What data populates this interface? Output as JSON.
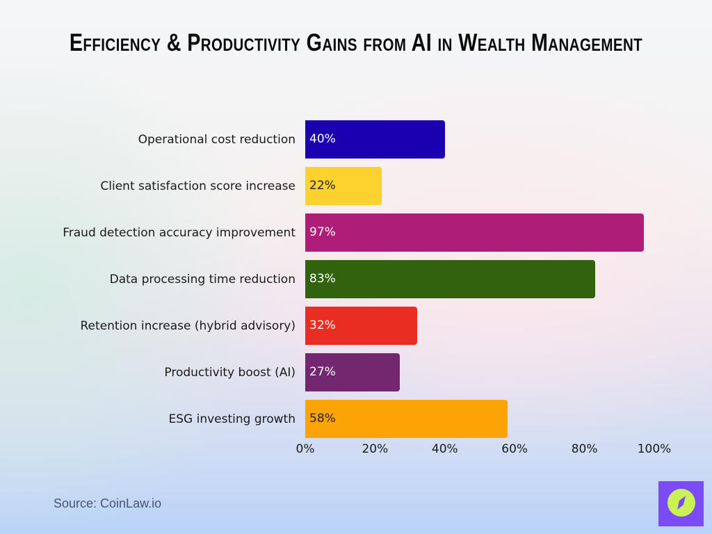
{
  "title": "Efficiency & Productivity Gains from AI in Wealth Management",
  "source": "Source: CoinLaw.io",
  "logo": {
    "icon": "compass-icon",
    "bg_color": "#7b4cf5",
    "fg_color": "#c9f255"
  },
  "chart_data": {
    "type": "bar",
    "orientation": "horizontal",
    "title": "Efficiency & Productivity Gains from AI in Wealth Management",
    "xlabel": "",
    "ylabel": "",
    "xlim": [
      0,
      100
    ],
    "grid": false,
    "legend": "none",
    "categories": [
      "Operational cost reduction",
      "Client satisfaction score increase",
      "Fraud detection accuracy improvement",
      "Data processing time reduction",
      "Retention increase (hybrid advisory)",
      "Productivity boost (AI)",
      "ESG investing growth"
    ],
    "values": [
      40,
      22,
      97,
      83,
      32,
      27,
      58
    ],
    "value_labels": [
      "40%",
      "22%",
      "97%",
      "83%",
      "32%",
      "27%",
      "58%"
    ],
    "colors": [
      "#1a00b0",
      "#fdd12e",
      "#ae1e78",
      "#33620f",
      "#e82e22",
      "#72286f",
      "#fca406"
    ],
    "label_colors": [
      "#ffffff",
      "#222222",
      "#ffffff",
      "#ffffff",
      "#ffffff",
      "#ffffff",
      "#222222"
    ],
    "x_ticks": [
      "0%",
      "20%",
      "40%",
      "60%",
      "80%",
      "100%"
    ],
    "source": "Source: CoinLaw.io"
  }
}
